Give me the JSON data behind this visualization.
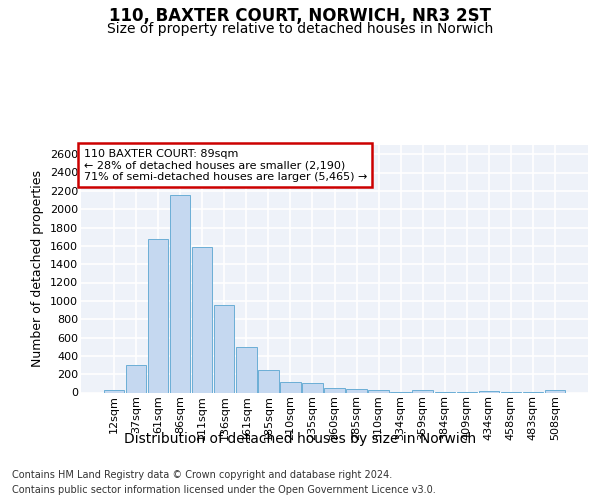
{
  "title1": "110, BAXTER COURT, NORWICH, NR3 2ST",
  "title2": "Size of property relative to detached houses in Norwich",
  "xlabel": "Distribution of detached houses by size in Norwich",
  "ylabel": "Number of detached properties",
  "annotation_title": "110 BAXTER COURT: 89sqm",
  "annotation_line2": "← 28% of detached houses are smaller (2,190)",
  "annotation_line3": "71% of semi-detached houses are larger (5,465) →",
  "footer1": "Contains HM Land Registry data © Crown copyright and database right 2024.",
  "footer2": "Contains public sector information licensed under the Open Government Licence v3.0.",
  "bar_labels": [
    "12sqm",
    "37sqm",
    "61sqm",
    "86sqm",
    "111sqm",
    "136sqm",
    "161sqm",
    "185sqm",
    "210sqm",
    "235sqm",
    "260sqm",
    "285sqm",
    "310sqm",
    "334sqm",
    "359sqm",
    "384sqm",
    "409sqm",
    "434sqm",
    "458sqm",
    "483sqm",
    "508sqm"
  ],
  "bar_values": [
    25,
    300,
    1670,
    2150,
    1590,
    960,
    500,
    250,
    120,
    105,
    50,
    40,
    30,
    5,
    30,
    5,
    5,
    20,
    5,
    5,
    25
  ],
  "bar_color": "#c5d8f0",
  "bar_edge_color": "#6baed6",
  "ylim": [
    0,
    2700
  ],
  "yticks": [
    0,
    200,
    400,
    600,
    800,
    1000,
    1200,
    1400,
    1600,
    1800,
    2000,
    2200,
    2400,
    2600
  ],
  "bg_color": "#ffffff",
  "plot_bg_color": "#eef2f9",
  "annotation_box_facecolor": "#ffffff",
  "annotation_box_edgecolor": "#cc0000",
  "grid_color": "#ffffff",
  "title1_fontsize": 12,
  "title2_fontsize": 10,
  "xlabel_fontsize": 10,
  "ylabel_fontsize": 9,
  "tick_fontsize": 8,
  "footer_fontsize": 7
}
